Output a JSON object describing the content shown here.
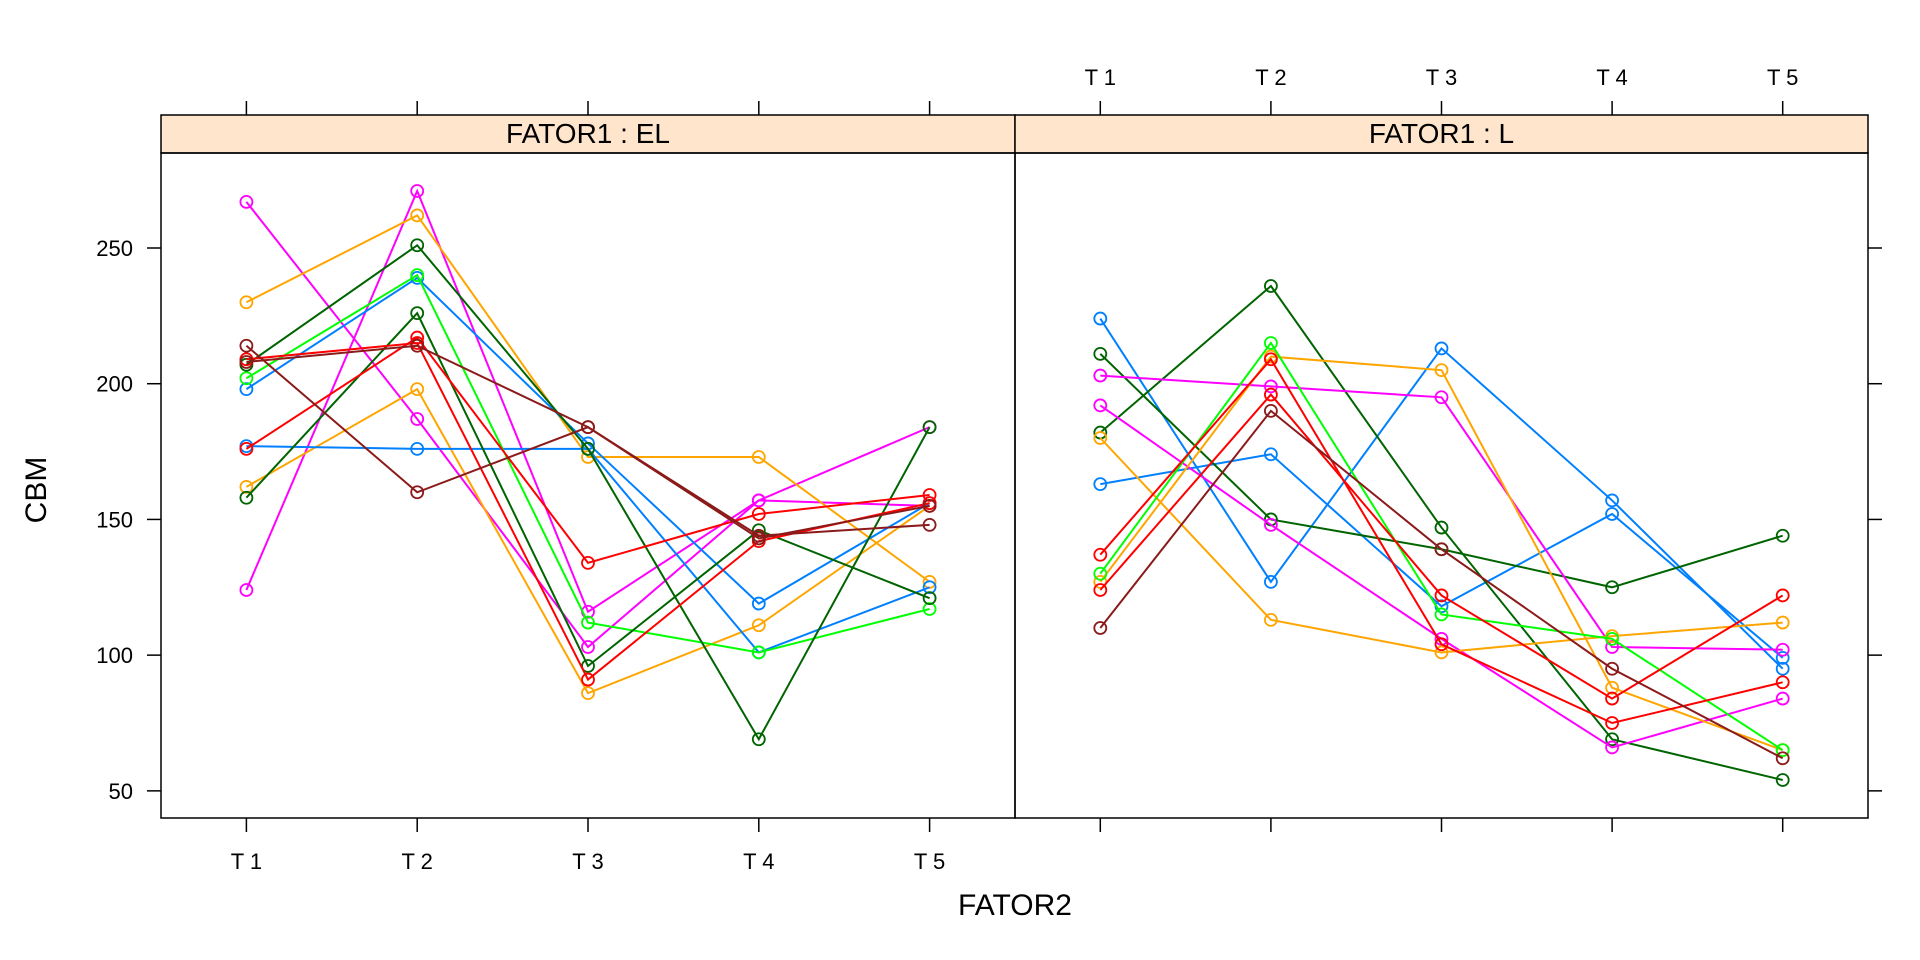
{
  "chart_data": {
    "type": "line",
    "xlabel": "FATOR2",
    "ylabel": "CBM",
    "categories": [
      "T 1",
      "T 2",
      "T 3",
      "T 4",
      "T 5"
    ],
    "y_ticks": [
      50,
      100,
      150,
      200,
      250
    ],
    "ylim": [
      40,
      285
    ],
    "strip_background": "#ffe5cc",
    "marker": "open-circle",
    "grid": false,
    "panels": [
      {
        "strip": "FATOR1 : EL",
        "series": [
          {
            "color": "#ff00ff",
            "values": [
              267,
              187,
              103,
              157,
              184
            ]
          },
          {
            "color": "#ff00ff",
            "values": [
              124,
              271,
              116,
              157,
              155
            ]
          },
          {
            "color": "#ffa500",
            "values": [
              230,
              262,
              173,
              173,
              127
            ]
          },
          {
            "color": "#ffa500",
            "values": [
              162,
              198,
              86,
              111,
              155
            ]
          },
          {
            "color": "#0080ff",
            "values": [
              198,
              239,
              178,
              119,
              156
            ]
          },
          {
            "color": "#0080ff",
            "values": [
              177,
              176,
              176,
              101,
              125
            ]
          },
          {
            "color": "#00ff00",
            "values": [
              202,
              240,
              112,
              101,
              117
            ]
          },
          {
            "color": "#006400",
            "values": [
              207,
              251,
              176,
              69,
              184
            ]
          },
          {
            "color": "#006400",
            "values": [
              158,
              226,
              96,
              146,
              121
            ]
          },
          {
            "color": "#ff0000",
            "values": [
              176,
              217,
              134,
              152,
              159
            ]
          },
          {
            "color": "#ff0000",
            "values": [
              209,
              215,
              91,
              142,
              156
            ]
          },
          {
            "color": "#8b1a1a",
            "values": [
              214,
              160,
              184,
              144,
              148
            ]
          },
          {
            "color": "#8b1a1a",
            "values": [
              208,
              214,
              184,
              143,
              155
            ]
          }
        ]
      },
      {
        "strip": "FATOR1 : L",
        "series": [
          {
            "color": "#0080ff",
            "values": [
              224,
              127,
              213,
              157,
              95
            ]
          },
          {
            "color": "#0080ff",
            "values": [
              163,
              174,
              118,
              152,
              99
            ]
          },
          {
            "color": "#006400",
            "values": [
              211,
              150,
              139,
              125,
              144
            ]
          },
          {
            "color": "#006400",
            "values": [
              182,
              236,
              147,
              69,
              54
            ]
          },
          {
            "color": "#ff00ff",
            "values": [
              203,
              199,
              195,
              103,
              102
            ]
          },
          {
            "color": "#ff00ff",
            "values": [
              192,
              148,
              106,
              66,
              84
            ]
          },
          {
            "color": "#ffa500",
            "values": [
              180,
              113,
              101,
              107,
              112
            ]
          },
          {
            "color": "#ffa500",
            "values": [
              127,
              210,
              205,
              88,
              65
            ]
          },
          {
            "color": "#00ff00",
            "values": [
              130,
              215,
              115,
              106,
              65
            ]
          },
          {
            "color": "#ff0000",
            "values": [
              137,
              209,
              104,
              75,
              90
            ]
          },
          {
            "color": "#ff0000",
            "values": [
              124,
              196,
              122,
              84,
              122
            ]
          },
          {
            "color": "#8b1a1a",
            "values": [
              110,
              190,
              139,
              95,
              62
            ]
          }
        ]
      }
    ]
  }
}
